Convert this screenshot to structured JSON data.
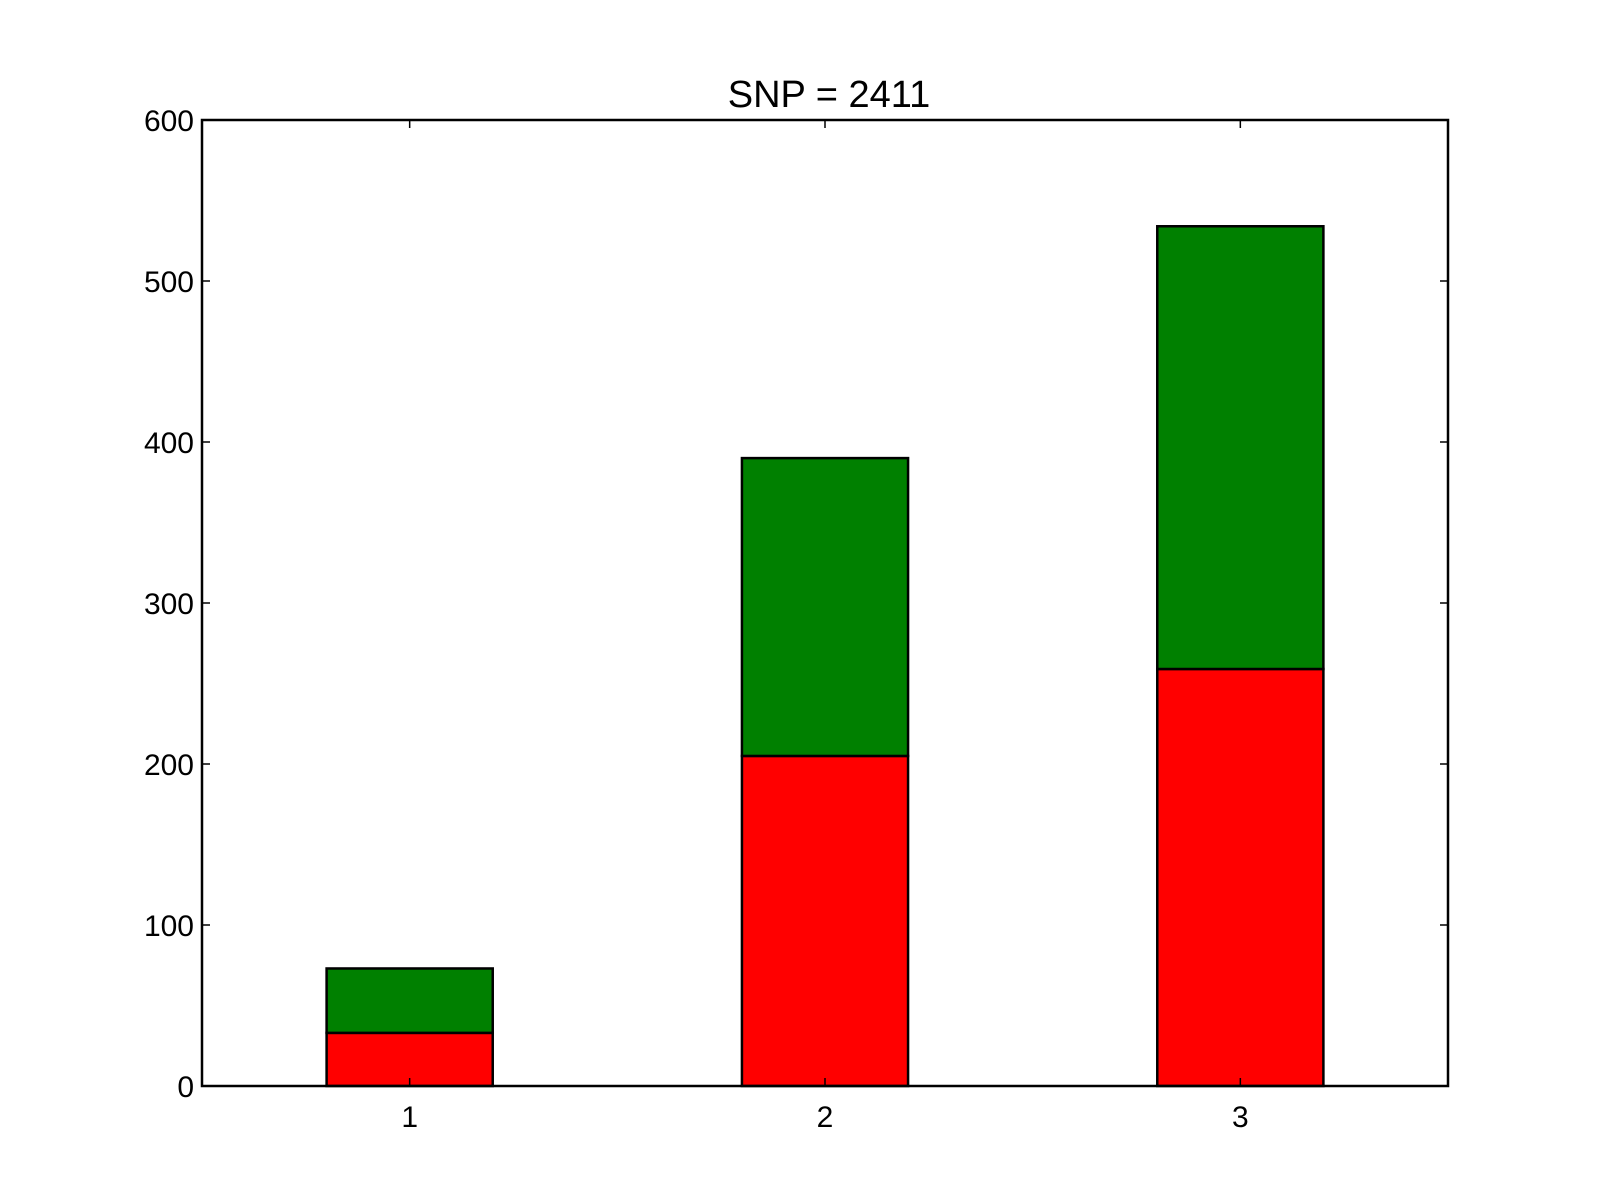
{
  "chart_data": {
    "type": "bar",
    "stacked": true,
    "title": "SNP = 2411",
    "xlabel": "",
    "ylabel": "",
    "categories": [
      "1",
      "2",
      "3"
    ],
    "x": [
      1,
      2,
      3
    ],
    "xlim": [
      0.5,
      3.5
    ],
    "ylim": [
      0,
      600
    ],
    "yticks": [
      0,
      100,
      200,
      300,
      400,
      500,
      600
    ],
    "grid": false,
    "legend": "none",
    "series": [
      {
        "values": [
          33,
          205,
          259
        ],
        "color": "#ff0000"
      },
      {
        "values": [
          40,
          185,
          275
        ],
        "color": "#008000"
      }
    ]
  }
}
